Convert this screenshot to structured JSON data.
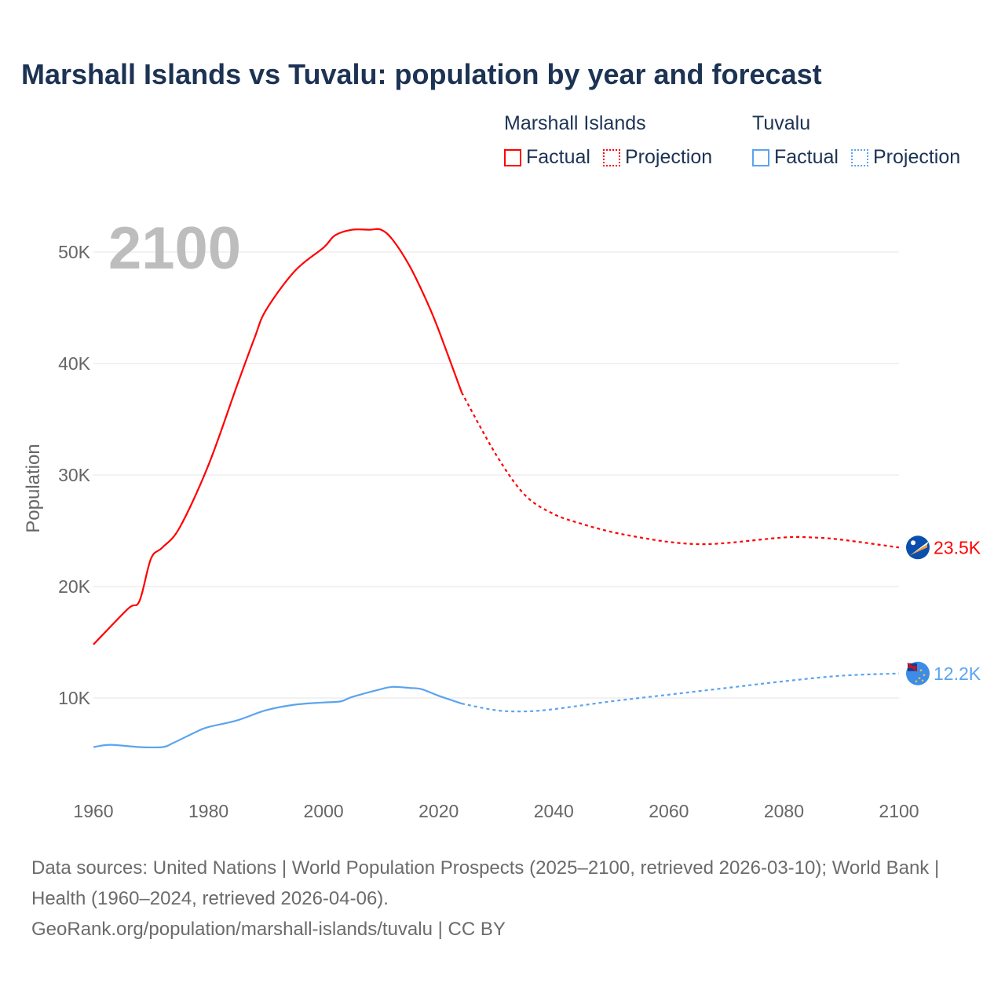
{
  "title": "Marshall Islands vs Tuvalu: population by year and forecast",
  "legend": {
    "groups": [
      {
        "name": "Marshall Islands",
        "factual": "Factual",
        "projection": "Projection",
        "color": "#ff0000"
      },
      {
        "name": "Tuvalu",
        "factual": "Factual",
        "projection": "Projection",
        "color": "#5ba4ee"
      }
    ]
  },
  "year_overlay": "2100",
  "chart_data": {
    "type": "line",
    "title": "Marshall Islands vs Tuvalu: population by year and forecast",
    "xlabel": "",
    "ylabel": "Population",
    "xlim": [
      1960,
      2100
    ],
    "ylim": [
      0,
      55000
    ],
    "x_ticks": [
      1960,
      1980,
      2000,
      2020,
      2040,
      2060,
      2080,
      2100
    ],
    "x_tick_labels": [
      "1960",
      "1980",
      "2000",
      "2020",
      "2040",
      "2060",
      "2080",
      "2100"
    ],
    "y_ticks": [
      10000,
      20000,
      30000,
      40000,
      50000
    ],
    "y_tick_labels": [
      "10K",
      "20K",
      "30K",
      "40K",
      "50K"
    ],
    "grid": true,
    "legend_position": "top-right",
    "series": [
      {
        "name": "Marshall Islands",
        "color": "#ff0000",
        "end_label": "23.5K",
        "factual": {
          "x": [
            1960,
            1966,
            1968,
            1970,
            1972,
            1975,
            1980,
            1985,
            1988,
            1990,
            1995,
            2000,
            2002,
            2005,
            2008,
            2010,
            2012,
            2015,
            2018,
            2020,
            2024
          ],
          "y": [
            14800,
            18000,
            18700,
            22500,
            23500,
            25300,
            30900,
            38100,
            42300,
            44800,
            48300,
            50400,
            51500,
            52000,
            52000,
            52000,
            51100,
            48700,
            45500,
            43000,
            37400
          ]
        },
        "projection": {
          "x": [
            2024,
            2030,
            2035,
            2040,
            2045,
            2050,
            2055,
            2060,
            2065,
            2070,
            2080,
            2085,
            2090,
            2100
          ],
          "y": [
            37400,
            31800,
            28200,
            26500,
            25600,
            24900,
            24400,
            24000,
            23800,
            23900,
            24400,
            24400,
            24200,
            23500
          ]
        }
      },
      {
        "name": "Tuvalu",
        "color": "#5ba4ee",
        "end_label": "12.2K",
        "factual": {
          "x": [
            1960,
            1963,
            1968,
            1972,
            1974,
            1978,
            1980,
            1985,
            1990,
            1995,
            2000,
            2003,
            2005,
            2010,
            2012,
            2015,
            2017,
            2020,
            2024
          ],
          "y": [
            5600,
            5800,
            5600,
            5600,
            6000,
            7000,
            7400,
            8000,
            8900,
            9400,
            9600,
            9700,
            10100,
            10800,
            11000,
            10900,
            10800,
            10200,
            9500
          ]
        },
        "projection": {
          "x": [
            2024,
            2030,
            2035,
            2040,
            2050,
            2060,
            2070,
            2080,
            2090,
            2100
          ],
          "y": [
            9500,
            8900,
            8800,
            9000,
            9700,
            10300,
            10900,
            11500,
            12000,
            12200
          ]
        }
      }
    ]
  },
  "footer": {
    "sources": "Data sources: United Nations | World Population Prospects (2025–2100, retrieved 2026-03-10); World Bank | Health (1960–2024, retrieved 2026-04-06).",
    "credit": "GeoRank.org/population/marshall-islands/tuvalu | CC BY"
  }
}
